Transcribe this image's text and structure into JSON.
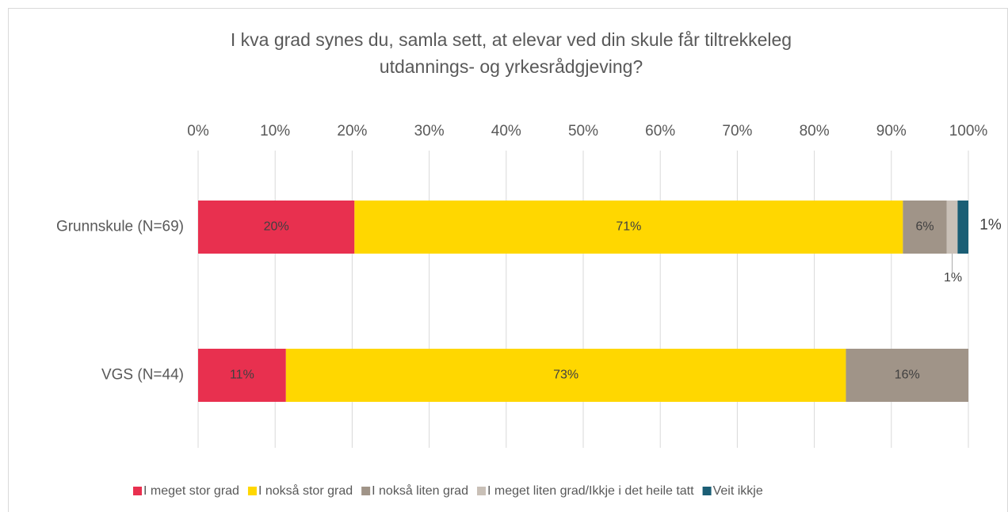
{
  "chart_data": {
    "type": "stacked-bar-horizontal",
    "title": "I kva grad synes du, samla sett, at elevar ved din skule får tiltrekkeleg utdannings- og yrkesrådgjeving?",
    "categories": [
      "Grunnskule (N=69)",
      "VGS (N=44)"
    ],
    "series": [
      {
        "name": "I meget stor grad",
        "color": "#E8304F",
        "values": [
          20.3,
          11.4
        ],
        "value_labels": [
          "20%",
          "11%"
        ]
      },
      {
        "name": "I nokså stor grad",
        "color": "#FFD700",
        "values": [
          71.2,
          72.7
        ],
        "value_labels": [
          "71%",
          "73%"
        ]
      },
      {
        "name": "I nokså liten grad",
        "color": "#A09488",
        "values": [
          5.7,
          15.9
        ],
        "value_labels": [
          "6%",
          "16%"
        ]
      },
      {
        "name": "I meget liten grad/Ikkje i det heile tatt",
        "color": "#C9C0B7",
        "values": [
          1.4,
          0
        ],
        "value_labels": [
          "1%",
          null
        ]
      },
      {
        "name": "Veit ikkje",
        "color": "#1B5E75",
        "values": [
          1.4,
          0
        ],
        "value_labels": [
          "1%",
          null
        ]
      }
    ],
    "xlim": [
      0,
      100
    ],
    "xticks": [
      {
        "value": 0,
        "label": "0%"
      },
      {
        "value": 10,
        "label": "10%"
      },
      {
        "value": 20,
        "label": "20%"
      },
      {
        "value": 30,
        "label": "30%"
      },
      {
        "value": 40,
        "label": "40%"
      },
      {
        "value": 50,
        "label": "50%"
      },
      {
        "value": 60,
        "label": "60%"
      },
      {
        "value": 70,
        "label": "70%"
      },
      {
        "value": 80,
        "label": "80%"
      },
      {
        "value": 90,
        "label": "90%"
      },
      {
        "value": 100,
        "label": "100%"
      }
    ],
    "grid": true,
    "legend": "bottom"
  }
}
